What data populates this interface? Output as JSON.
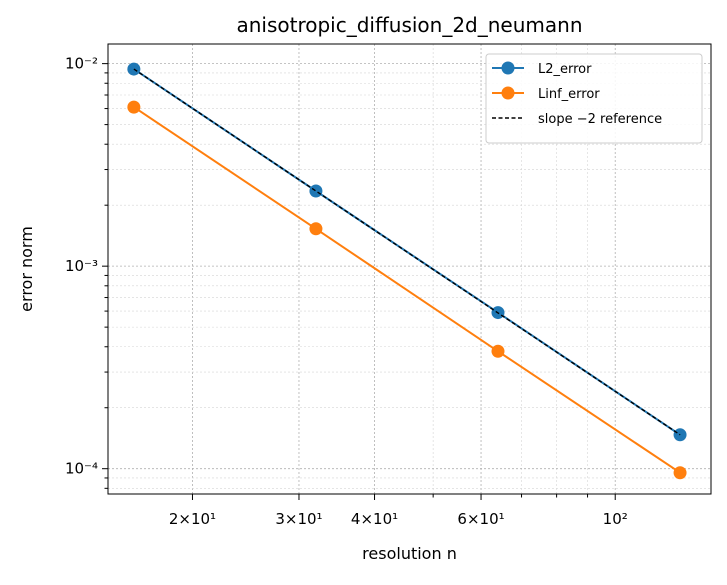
{
  "chart_data": {
    "type": "line",
    "title": "anisotropic_diffusion_2d_neumann",
    "xlabel": "resolution n",
    "ylabel": "error norm",
    "xscale": "log",
    "yscale": "log",
    "xlim": [
      14.5,
      144
    ],
    "ylim": [
      7.5e-05,
      0.0125
    ],
    "grid": true,
    "legend_position": "top-right",
    "x": [
      16,
      32,
      64,
      128
    ],
    "series": [
      {
        "name": "L2_error",
        "color": "#1f77b4",
        "marker": "circle",
        "style": "solid",
        "values": [
          0.0094,
          0.00235,
          0.00059,
          0.000147
        ]
      },
      {
        "name": "Linf_error",
        "color": "#ff7f0e",
        "marker": "circle",
        "style": "solid",
        "values": [
          0.0061,
          0.00153,
          0.00038,
          9.55e-05
        ]
      },
      {
        "name": "slope −2 reference",
        "color": "#000000",
        "marker": "none",
        "style": "dashed",
        "values": [
          0.0094,
          0.00235,
          0.000588,
          0.000147
        ]
      }
    ],
    "x_ticks": [
      {
        "value": 20,
        "label": "2×10¹"
      },
      {
        "value": 30,
        "label": "3×10¹"
      },
      {
        "value": 40,
        "label": "4×10¹"
      },
      {
        "value": 60,
        "label": "6×10¹"
      },
      {
        "value": 100,
        "label": "10²"
      }
    ],
    "y_ticks": [
      {
        "value": 0.0001,
        "label": "10⁻⁴"
      },
      {
        "value": 0.001,
        "label": "10⁻³"
      },
      {
        "value": 0.01,
        "label": "10⁻²"
      }
    ]
  }
}
